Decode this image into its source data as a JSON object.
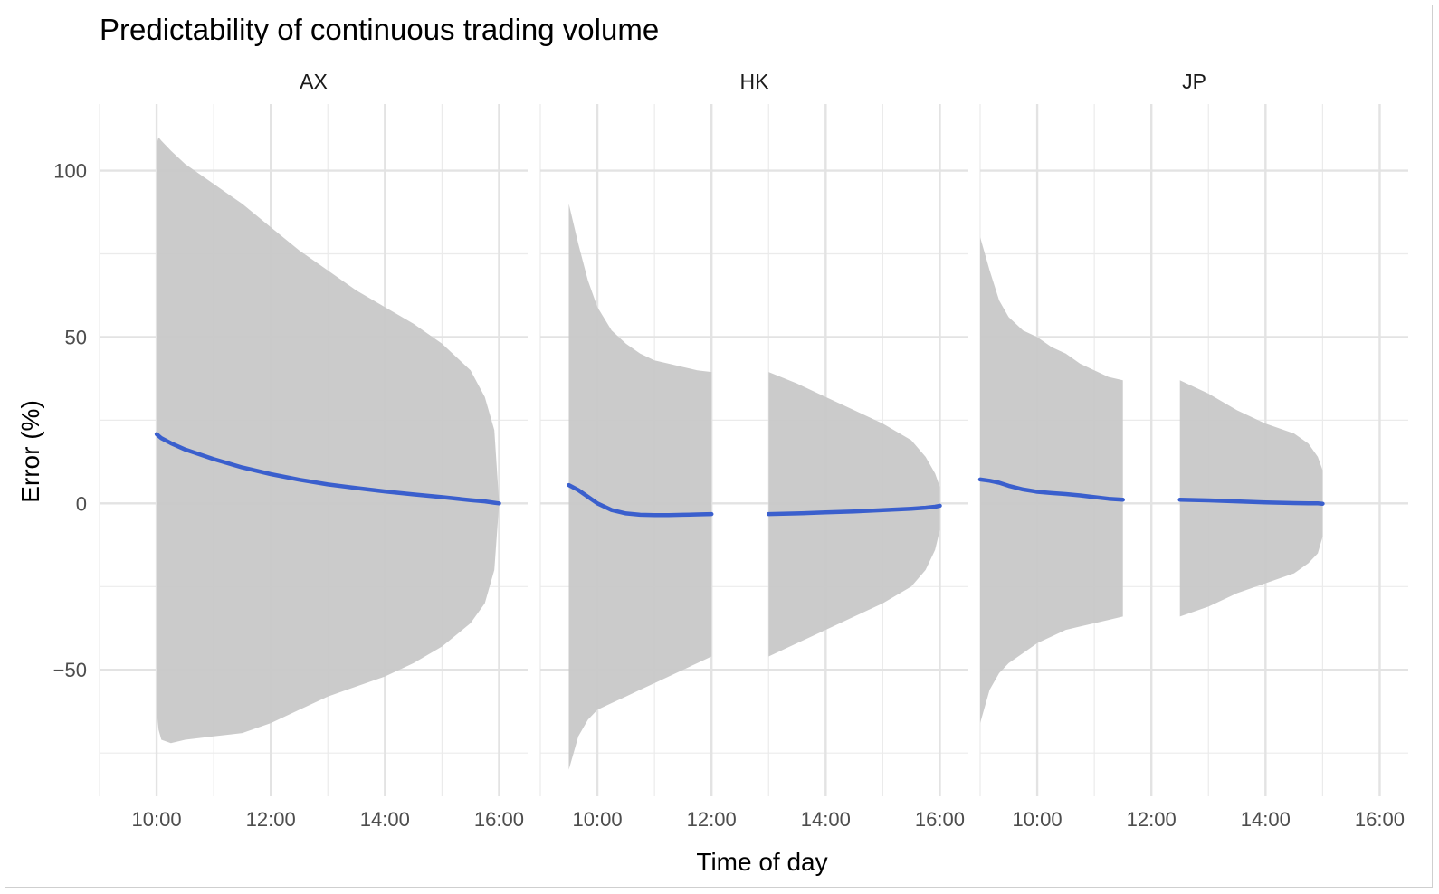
{
  "chart_data": {
    "type": "area",
    "title": "Predictability of continuous trading volume",
    "xlabel": "Time of day",
    "ylabel": "Error (%)",
    "grid": true,
    "x_ticks": [
      "10:00",
      "12:00",
      "14:00",
      "16:00"
    ],
    "xlim": [
      "09:00",
      "16:30"
    ],
    "y_ticks": [
      100,
      50,
      0,
      -50
    ],
    "y_tick_labels": [
      "100",
      "50",
      "0",
      "−50"
    ],
    "ylim": [
      -88,
      120
    ],
    "colors": {
      "line": "#3a5fcd",
      "band": "#c8c8c8"
    },
    "panels": [
      {
        "name": "AX",
        "segments": [
          {
            "x": [
              "10:00",
              "10:02",
              "10:05",
              "10:15",
              "10:30",
              "11:00",
              "11:30",
              "12:00",
              "12:30",
              "13:00",
              "13:30",
              "14:00",
              "14:30",
              "15:00",
              "15:30",
              "15:45",
              "15:55",
              "16:00"
            ],
            "upper": [
              108,
              110,
              109,
              106,
              102,
              96,
              90,
              83,
              76,
              70,
              64,
              59,
              54,
              48,
              40,
              32,
              22,
              0
            ],
            "lower": [
              -62,
              -68,
              -71,
              -72,
              -71,
              -70,
              -69,
              -66,
              -62,
              -58,
              -55,
              -52,
              -48,
              -43,
              -36,
              -30,
              -20,
              0
            ],
            "mean": [
              20.8,
              20.3,
              19.6,
              18.1,
              16.2,
              13.3,
              10.8,
              8.8,
              7.1,
              5.7,
              4.6,
              3.6,
              2.7,
              1.9,
              1.0,
              0.6,
              0.2,
              0
            ]
          }
        ]
      },
      {
        "name": "HK",
        "segments": [
          {
            "x": [
              "09:30",
              "09:40",
              "09:50",
              "10:00",
              "10:15",
              "10:30",
              "10:45",
              "11:00",
              "11:15",
              "11:30",
              "11:45",
              "12:00"
            ],
            "upper": [
              90,
              78,
              67,
              59,
              52,
              48,
              45,
              43,
              42,
              41,
              40,
              39.5
            ],
            "lower": [
              -80,
              -70,
              -65,
              -62,
              -60,
              -58,
              -56,
              -54,
              -52,
              -50,
              -48,
              -46
            ],
            "mean": [
              5.5,
              4.0,
              2.0,
              0.0,
              -2.0,
              -3.0,
              -3.4,
              -3.5,
              -3.5,
              -3.4,
              -3.3,
              -3.2
            ]
          },
          {
            "x": [
              "13:00",
              "13:30",
              "14:00",
              "14:30",
              "15:00",
              "15:30",
              "15:45",
              "15:55",
              "16:00"
            ],
            "upper": [
              39.5,
              36,
              32,
              28,
              24,
              19,
              14,
              9,
              5
            ],
            "lower": [
              -46,
              -42,
              -38,
              -34,
              -30,
              -25,
              -20,
              -14,
              -8
            ],
            "mean": [
              -3.2,
              -3.0,
              -2.7,
              -2.4,
              -2.0,
              -1.6,
              -1.3,
              -1.0,
              -0.7
            ]
          }
        ]
      },
      {
        "name": "JP",
        "segments": [
          {
            "x": [
              "09:00",
              "09:10",
              "09:20",
              "09:30",
              "09:45",
              "10:00",
              "10:15",
              "10:30",
              "10:45",
              "11:00",
              "11:15",
              "11:30"
            ],
            "upper": [
              80,
              70,
              61,
              56,
              52,
              50,
              47,
              45,
              42,
              40,
              38,
              37
            ],
            "lower": [
              -66,
              -56,
              -51,
              -48,
              -45,
              -42,
              -40,
              -38,
              -37,
              -36,
              -35,
              -34
            ],
            "mean": [
              7.2,
              6.8,
              6.2,
              5.3,
              4.2,
              3.5,
              3.1,
              2.8,
              2.4,
              1.9,
              1.4,
              1.1
            ]
          },
          {
            "x": [
              "12:30",
              "13:00",
              "13:30",
              "14:00",
              "14:30",
              "14:45",
              "14:55",
              "15:00"
            ],
            "upper": [
              37,
              33,
              28,
              24,
              21,
              18,
              14,
              10
            ],
            "lower": [
              -34,
              -31,
              -27,
              -24,
              -21,
              -18,
              -15,
              -10
            ],
            "mean": [
              1.1,
              0.9,
              0.6,
              0.3,
              0.1,
              0.0,
              0.0,
              -0.1
            ]
          }
        ]
      }
    ]
  }
}
